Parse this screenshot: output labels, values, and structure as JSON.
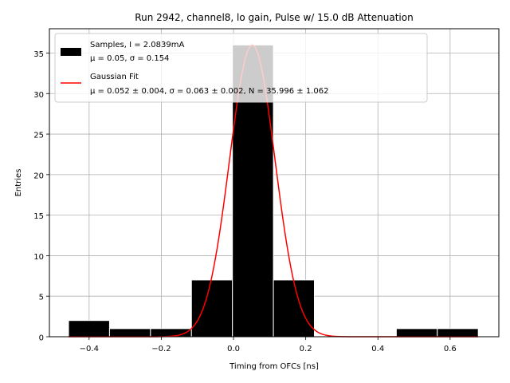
{
  "chart_data": {
    "type": "bar",
    "title": "Run 2942, channel8, lo gain, Pulse w/ 15.0 dB Attenuation",
    "xlabel": "Timing from OFCs [ns]",
    "ylabel": "Entries",
    "xlim": [
      -0.51,
      0.735
    ],
    "ylim": [
      0,
      38
    ],
    "grid": true,
    "x_ticks": [
      -0.4,
      -0.2,
      0.0,
      0.2,
      0.4,
      0.6
    ],
    "x_tick_labels": [
      "−0.4",
      "−0.2",
      "0.0",
      "0.2",
      "0.4",
      "0.6"
    ],
    "y_ticks": [
      0,
      5,
      10,
      15,
      20,
      25,
      30,
      35
    ],
    "y_tick_labels": [
      "0",
      "5",
      "10",
      "15",
      "20",
      "25",
      "30",
      "35"
    ],
    "histogram": {
      "name": "Samples",
      "color": "#000000",
      "edge_color": "#ffffff",
      "bin_edges": [
        -0.457,
        -0.3435,
        -0.23,
        -0.1165,
        -0.003,
        0.1105,
        0.224,
        0.3375,
        0.451,
        0.5645,
        0.678
      ],
      "counts": [
        2,
        1,
        1,
        7,
        36,
        7,
        0,
        0,
        1,
        1
      ]
    },
    "fit": {
      "name": "Gaussian Fit",
      "color": "#ff0000",
      "mu": 0.052,
      "sigma": 0.063,
      "N": 35.996,
      "x_range": [
        -0.457,
        0.678
      ]
    },
    "legend": {
      "position": "top-left",
      "entries": [
        {
          "line1": "Samples, I = 2.0839mA",
          "line2": "μ = 0.05, σ = 0.154"
        },
        {
          "line1": "Gaussian Fit",
          "line2": "μ = 0.052 ± 0.004, σ = 0.063 ± 0.002, N = 35.996 ± 1.062"
        }
      ]
    }
  }
}
